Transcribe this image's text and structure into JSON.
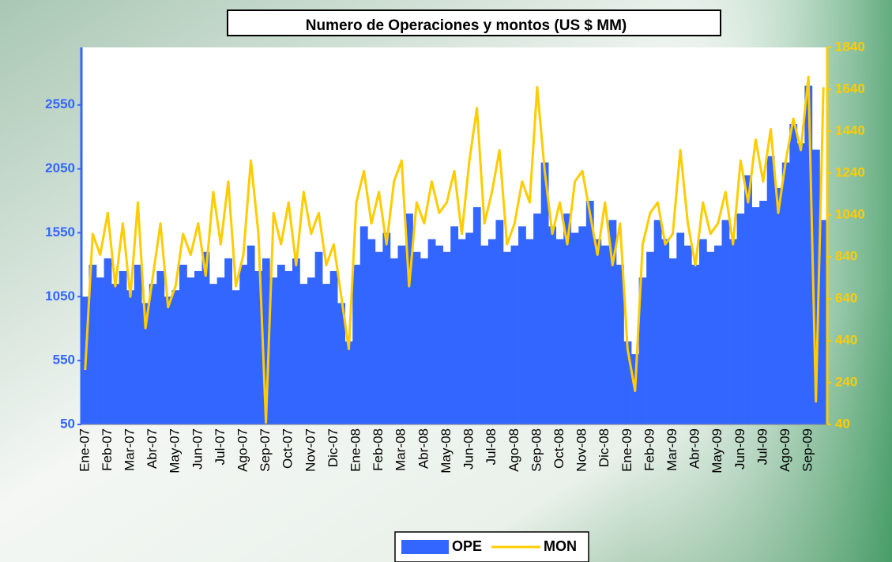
{
  "chart_data": {
    "type": "combo",
    "title": "Numero de Operaciones y montos (US $ MM)",
    "categories": [
      "Ene-07",
      null,
      null,
      "Feb-07",
      null,
      null,
      "Mar-07",
      null,
      null,
      "Abr-07",
      null,
      null,
      "May-07",
      null,
      null,
      "Jun-07",
      null,
      null,
      "Jul-07",
      null,
      null,
      "Ago-07",
      null,
      null,
      "Sep-07",
      null,
      null,
      "Oct-07",
      null,
      null,
      "Nov-07",
      null,
      null,
      "Dic-07",
      null,
      null,
      "Ene-08",
      null,
      null,
      "Feb-08",
      null,
      null,
      "Mar-08",
      null,
      null,
      "Abr-08",
      null,
      null,
      "May-08",
      null,
      null,
      "Jun-08",
      null,
      null,
      "Jul-08",
      null,
      null,
      "Ago-08",
      null,
      null,
      "Sep-08",
      null,
      null,
      "Oct-08",
      null,
      null,
      "Nov-08",
      null,
      null,
      "Dic-08",
      null,
      null,
      "Ene-09",
      null,
      null,
      "Feb-09",
      null,
      null,
      "Mar-09",
      null,
      null,
      "Abr-09",
      null,
      null,
      "May-09",
      null,
      null,
      "Jun-09",
      null,
      null,
      "Jul-09",
      null,
      null,
      "Ago-09",
      null,
      null,
      "Sep-09",
      null,
      null
    ],
    "series": [
      {
        "name": "OPE",
        "type": "bar",
        "color": "#3366ff",
        "values": [
          1050,
          1300,
          1200,
          1350,
          1150,
          1250,
          1100,
          1300,
          1000,
          1150,
          1250,
          1050,
          1100,
          1300,
          1200,
          1250,
          1400,
          1150,
          1200,
          1350,
          1100,
          1300,
          1450,
          1250,
          1350,
          1200,
          1300,
          1250,
          1350,
          1150,
          1200,
          1400,
          1150,
          1250,
          1000,
          700,
          1300,
          1600,
          1500,
          1400,
          1550,
          1350,
          1450,
          1700,
          1400,
          1350,
          1500,
          1450,
          1400,
          1600,
          1500,
          1550,
          1750,
          1450,
          1500,
          1650,
          1400,
          1450,
          1600,
          1500,
          1700,
          2100,
          1600,
          1500,
          1700,
          1550,
          1600,
          1800,
          1500,
          1450,
          1650,
          1300,
          700,
          600,
          1200,
          1400,
          1650,
          1500,
          1350,
          1550,
          1450,
          1300,
          1500,
          1400,
          1450,
          1650,
          1500,
          1700,
          2000,
          1750,
          1800,
          2150,
          1900,
          2100,
          2400,
          2250,
          2700,
          2200,
          1650
        ]
      },
      {
        "name": "MON",
        "type": "line",
        "axis": "y2",
        "color": "#ffcc00",
        "values": [
          300,
          950,
          850,
          1050,
          700,
          1000,
          650,
          1100,
          500,
          750,
          1000,
          600,
          700,
          950,
          850,
          1000,
          750,
          1150,
          900,
          1200,
          700,
          850,
          1300,
          950,
          50,
          1050,
          900,
          1100,
          800,
          1150,
          950,
          1050,
          800,
          900,
          650,
          400,
          1100,
          1250,
          1000,
          1150,
          900,
          1200,
          1300,
          700,
          1100,
          1000,
          1200,
          1050,
          1100,
          1250,
          950,
          1300,
          1550,
          1000,
          1150,
          1350,
          900,
          1000,
          1200,
          1100,
          1650,
          1250,
          950,
          1100,
          900,
          1200,
          1250,
          1050,
          850,
          1100,
          800,
          1000,
          400,
          200,
          900,
          1050,
          1100,
          900,
          950,
          1350,
          1000,
          800,
          1100,
          950,
          1000,
          1150,
          900,
          1300,
          1100,
          1400,
          1200,
          1450,
          1050,
          1300,
          1500,
          1350,
          1700,
          150,
          1650
        ]
      }
    ],
    "ylim": [
      50,
      3000
    ],
    "yticks": [
      50,
      550,
      1050,
      1550,
      2050,
      2550
    ],
    "y2lim": [
      40,
      1840
    ],
    "y2ticks": [
      40,
      240,
      440,
      640,
      840,
      1040,
      1240,
      1440,
      1640,
      1840
    ]
  }
}
